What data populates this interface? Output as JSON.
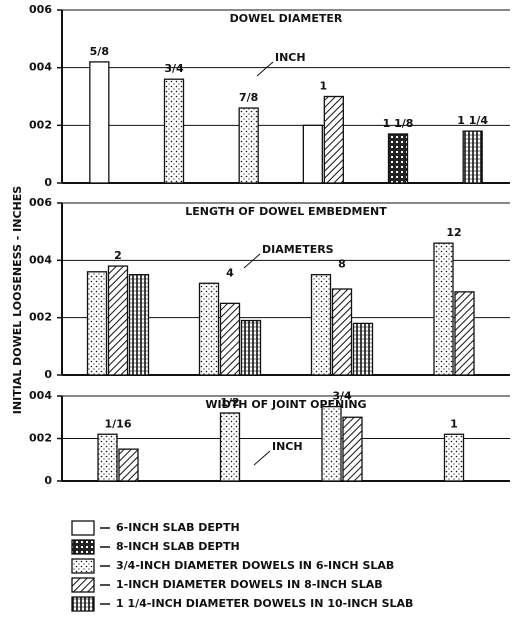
{
  "y_label": "INITIAL DOWEL LOOSENESS - INCHES",
  "chart_data": [
    {
      "type": "bar",
      "title": "DOWEL DIAMETER",
      "annotation": "INCH",
      "categories": [
        "5/8",
        "3/4",
        "7/8",
        "1",
        "1 1/8",
        "1 1/4"
      ],
      "ylim": [
        0,
        0.006
      ],
      "yticks": [
        0,
        {
          "value": 0.002,
          "label": "002"
        },
        {
          "value": 0.004,
          "label": "004"
        },
        {
          "value": 0.006,
          "label": "006"
        }
      ],
      "grid": true,
      "series": [
        {
          "name": "6-INCH SLAB DEPTH",
          "pattern": "plain",
          "values": [
            0.0042,
            null,
            null,
            0.002,
            null,
            null
          ]
        },
        {
          "name": "8-INCH SLAB DEPTH",
          "pattern": "grid",
          "values": [
            null,
            null,
            null,
            null,
            0.0017,
            null
          ]
        },
        {
          "name": "3/4-INCH DIAMETER DOWELS IN 6-INCH SLAB",
          "pattern": "dots",
          "values": [
            null,
            0.0036,
            0.0026,
            null,
            null,
            null
          ]
        },
        {
          "name": "1-INCH DIAMETER DOWELS IN 8-INCH SLAB",
          "pattern": "hatch",
          "values": [
            null,
            null,
            null,
            0.003,
            null,
            null
          ]
        },
        {
          "name": "1 1/4-INCH DIAMETER DOWELS IN 10-INCH SLAB",
          "pattern": "vlines",
          "values": [
            null,
            null,
            null,
            null,
            null,
            0.0018
          ]
        }
      ]
    },
    {
      "type": "bar",
      "title": "LENGTH OF DOWEL EMBEDMENT",
      "annotation": "DIAMETERS",
      "categories": [
        "2",
        "4",
        "8",
        "12"
      ],
      "ylim": [
        0,
        0.006
      ],
      "yticks": [
        0,
        {
          "value": 0.002,
          "label": "002"
        },
        {
          "value": 0.004,
          "label": "004"
        },
        {
          "value": 0.006,
          "label": "006"
        }
      ],
      "grid": true,
      "series": [
        {
          "pattern": "dots",
          "values": [
            0.0036,
            0.0032,
            0.0035,
            0.0046
          ]
        },
        {
          "pattern": "hatch",
          "values": [
            0.0038,
            0.0025,
            0.003,
            0.0029
          ]
        },
        {
          "pattern": "vlines",
          "values": [
            0.0035,
            0.0019,
            0.0018,
            null
          ]
        }
      ]
    },
    {
      "type": "bar",
      "title": "WIDTH OF JOINT OPENING",
      "annotation": "INCH",
      "categories": [
        "1/16",
        "1/2",
        "3/4",
        "1"
      ],
      "ylim": [
        0,
        0.004
      ],
      "yticks": [
        0,
        {
          "value": 0.002,
          "label": "002"
        },
        {
          "value": 0.004,
          "label": "004"
        }
      ],
      "grid": true,
      "series": [
        {
          "pattern": "dots",
          "values": [
            0.0022,
            0.0032,
            0.0035,
            0.0022
          ]
        },
        {
          "pattern": "hatch",
          "values": [
            0.0015,
            null,
            0.003,
            null
          ]
        }
      ]
    }
  ]
}
